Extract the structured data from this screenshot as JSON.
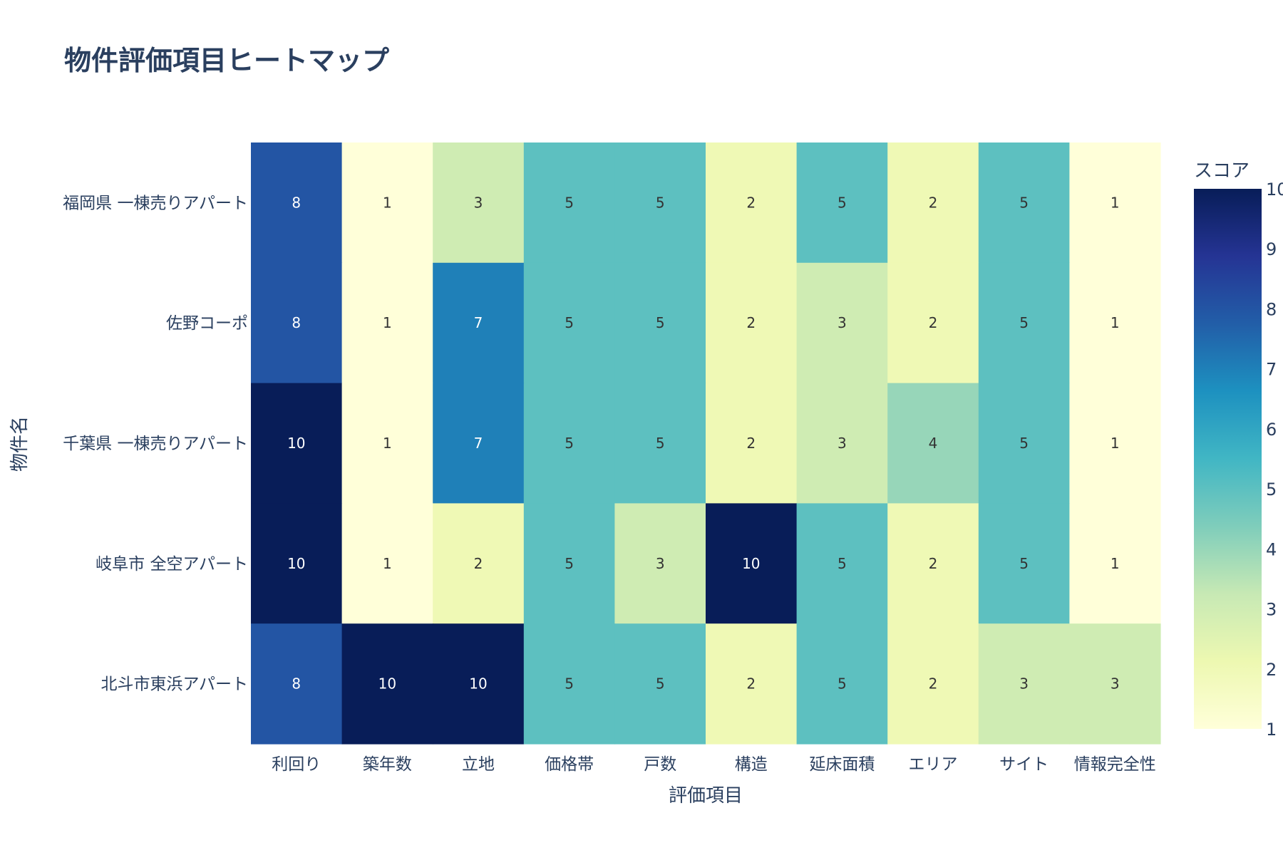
{
  "chart_data": {
    "type": "heatmap",
    "title": "物件評価項目ヒートマップ",
    "xlabel": "評価項目",
    "ylabel": "物件名",
    "x": [
      "利回り",
      "築年数",
      "立地",
      "価格帯",
      "戸数",
      "構造",
      "延床面積",
      "エリア",
      "サイト",
      "情報完全性"
    ],
    "y": [
      "福岡県 一棟売りアパート",
      "佐野コーポ",
      "千葉県 一棟売りアパート",
      "岐阜市 全空アパート",
      "北斗市東浜アパート"
    ],
    "z": [
      [
        8,
        1,
        3,
        5,
        5,
        2,
        5,
        2,
        5,
        1
      ],
      [
        8,
        1,
        7,
        5,
        5,
        2,
        3,
        2,
        5,
        1
      ],
      [
        10,
        1,
        7,
        5,
        5,
        2,
        3,
        4,
        5,
        1
      ],
      [
        10,
        1,
        2,
        5,
        3,
        10,
        5,
        2,
        5,
        1
      ],
      [
        8,
        10,
        10,
        5,
        5,
        2,
        5,
        2,
        3,
        3
      ]
    ],
    "zmin": 1,
    "zmax": 10,
    "colorscale": "YlGnBu",
    "colorbar": {
      "title": "スコア",
      "ticks": [
        1,
        2,
        3,
        4,
        5,
        6,
        7,
        8,
        9,
        10
      ]
    },
    "grid": false,
    "show_cell_values": true
  },
  "colors": {
    "text": "#2a3f5f",
    "scale": [
      "#ffffd9",
      "#edf8b1",
      "#c7e9b4",
      "#7fcdbb",
      "#41b6c4",
      "#1d91c0",
      "#225ea8",
      "#253494",
      "#081d58"
    ]
  }
}
